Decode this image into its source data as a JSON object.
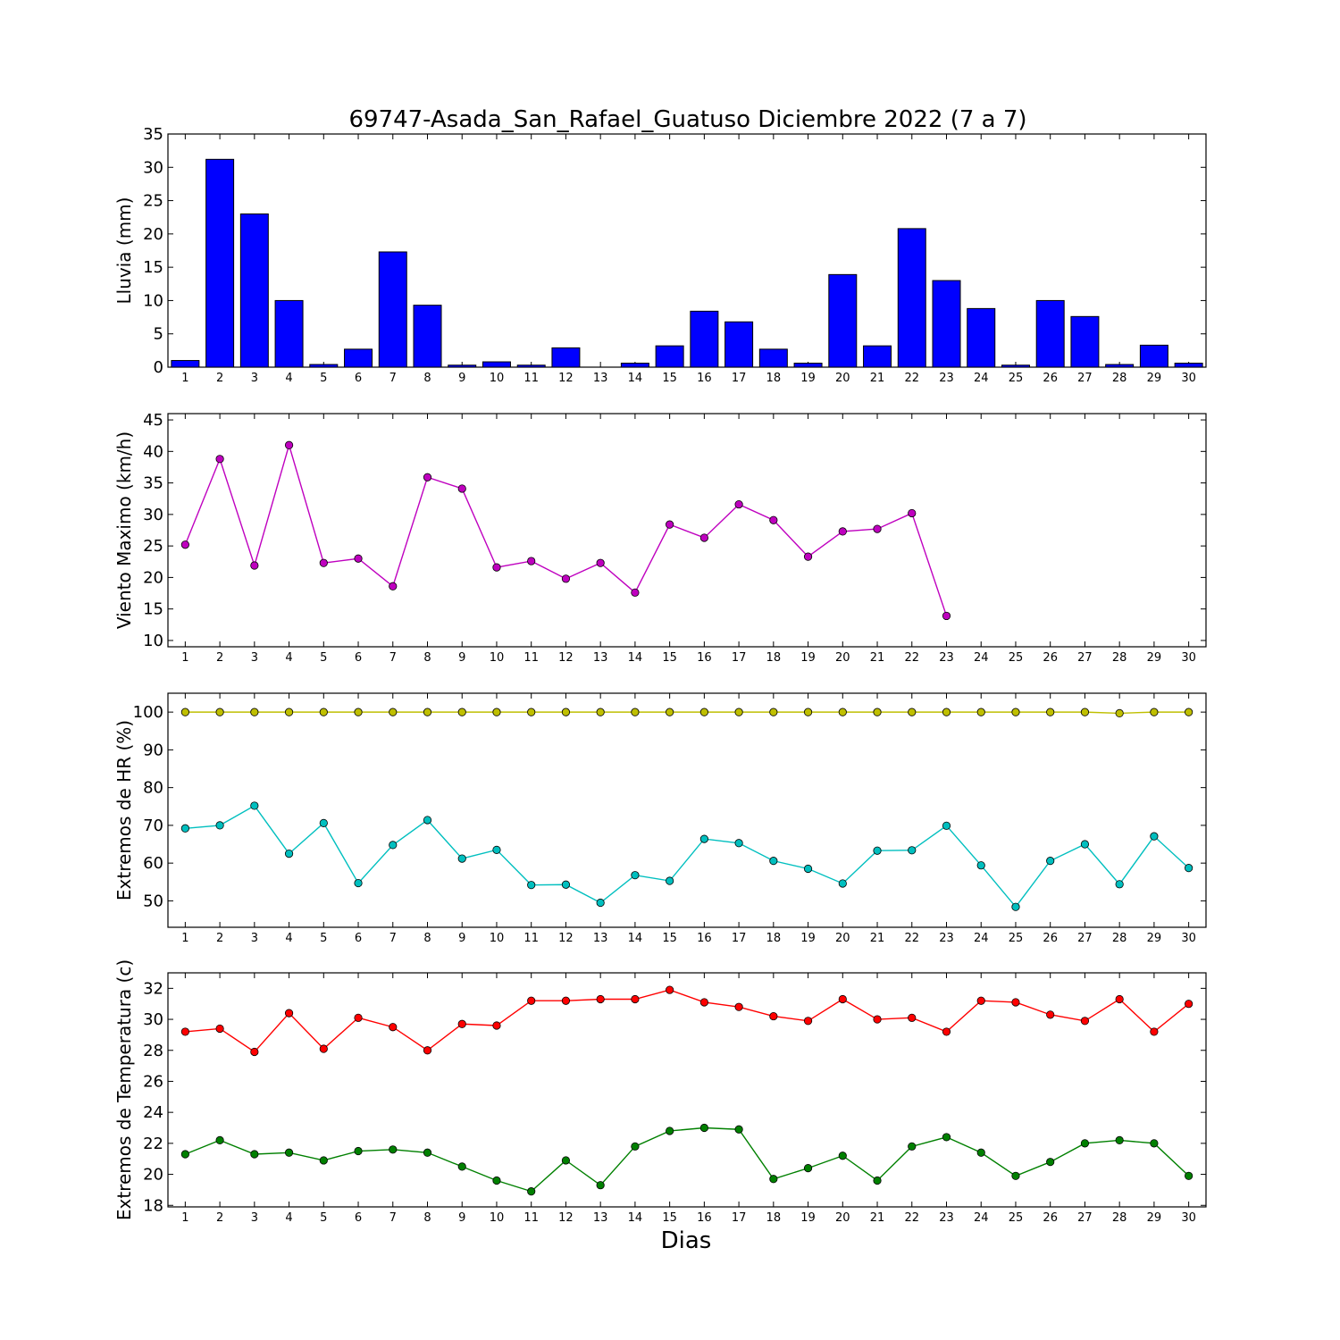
{
  "figure": {
    "title": "69747-Asada_San_Rafael_Guatuso Diciembre 2022  (7 a 7)",
    "xlabel": "Dias"
  },
  "chart_data": [
    {
      "type": "bar",
      "ylabel": "Lluvia (mm)",
      "categories": [
        "1",
        "2",
        "3",
        "4",
        "5",
        "6",
        "7",
        "8",
        "9",
        "10",
        "11",
        "12",
        "13",
        "14",
        "15",
        "16",
        "17",
        "18",
        "19",
        "20",
        "21",
        "22",
        "23",
        "24",
        "25",
        "26",
        "27",
        "28",
        "29",
        "30"
      ],
      "ylim": [
        0,
        35
      ],
      "yticks": [
        0,
        5,
        10,
        15,
        20,
        25,
        30,
        35
      ],
      "series": [
        {
          "color": "#0000ff",
          "values": [
            1.0,
            31.2,
            23.0,
            10.0,
            0.4,
            2.7,
            17.3,
            9.3,
            0.3,
            0.8,
            0.3,
            2.9,
            0.0,
            0.6,
            3.2,
            8.4,
            6.8,
            2.7,
            0.6,
            13.9,
            3.2,
            20.8,
            13.0,
            8.8,
            0.3,
            10.0,
            7.6,
            0.4,
            3.3,
            0.6
          ]
        }
      ]
    },
    {
      "type": "line",
      "ylabel": "Viento Maximo (km/h)",
      "categories": [
        "1",
        "2",
        "3",
        "4",
        "5",
        "6",
        "7",
        "8",
        "9",
        "10",
        "11",
        "12",
        "13",
        "14",
        "15",
        "16",
        "17",
        "18",
        "19",
        "20",
        "21",
        "22",
        "23",
        "24",
        "25",
        "26",
        "27",
        "28",
        "29",
        "30"
      ],
      "ylim": [
        9,
        46
      ],
      "yticks": [
        10,
        15,
        20,
        25,
        30,
        35,
        40,
        45
      ],
      "series": [
        {
          "color": "#bf00bf",
          "values": [
            25.2,
            38.8,
            21.9,
            41.0,
            22.3,
            23.0,
            18.6,
            35.9,
            34.1,
            21.6,
            22.6,
            19.8,
            22.3,
            17.6,
            28.4,
            26.3,
            31.6,
            29.1,
            23.3,
            27.3,
            27.7,
            30.2,
            13.9,
            null,
            null,
            null,
            null,
            null,
            null,
            null
          ]
        }
      ]
    },
    {
      "type": "line",
      "ylabel": "Extremos de HR (%)",
      "categories": [
        "1",
        "2",
        "3",
        "4",
        "5",
        "6",
        "7",
        "8",
        "9",
        "10",
        "11",
        "12",
        "13",
        "14",
        "15",
        "16",
        "17",
        "18",
        "19",
        "20",
        "21",
        "22",
        "23",
        "24",
        "25",
        "26",
        "27",
        "28",
        "29",
        "30"
      ],
      "ylim": [
        43,
        105
      ],
      "yticks": [
        50,
        60,
        70,
        80,
        90,
        100
      ],
      "series": [
        {
          "color": "#bfbf00",
          "values": [
            100,
            100,
            100,
            100,
            100,
            100,
            100,
            100,
            100,
            100,
            100,
            100,
            100,
            100,
            100,
            100,
            100,
            100,
            100,
            100,
            100,
            100,
            100,
            100,
            100,
            100,
            100,
            99.7,
            100,
            100
          ]
        },
        {
          "color": "#00bfbf",
          "values": [
            69.2,
            70.0,
            75.2,
            62.5,
            70.6,
            54.7,
            64.8,
            71.4,
            61.2,
            63.5,
            54.2,
            54.3,
            49.5,
            56.8,
            55.3,
            66.4,
            65.3,
            60.6,
            58.5,
            54.6,
            63.3,
            63.4,
            69.9,
            59.4,
            48.4,
            60.6,
            65.0,
            54.4,
            67.1,
            58.7
          ]
        }
      ]
    },
    {
      "type": "line",
      "ylabel": "Extremos de Temperatura (c)",
      "categories": [
        "1",
        "2",
        "3",
        "4",
        "5",
        "6",
        "7",
        "8",
        "9",
        "10",
        "11",
        "12",
        "13",
        "14",
        "15",
        "16",
        "17",
        "18",
        "19",
        "20",
        "21",
        "22",
        "23",
        "24",
        "25",
        "26",
        "27",
        "28",
        "29",
        "30"
      ],
      "ylim": [
        17.9,
        33.0
      ],
      "yticks": [
        18,
        20,
        22,
        24,
        26,
        28,
        30,
        32
      ],
      "series": [
        {
          "color": "#ff0000",
          "values": [
            29.2,
            29.4,
            27.9,
            30.4,
            28.1,
            30.1,
            29.5,
            28.0,
            29.7,
            29.6,
            31.2,
            31.2,
            31.3,
            31.3,
            31.9,
            31.1,
            30.8,
            30.2,
            29.9,
            31.3,
            30.0,
            30.1,
            29.2,
            31.2,
            31.1,
            30.3,
            29.9,
            31.3,
            29.2,
            31.0
          ]
        },
        {
          "color": "#008000",
          "values": [
            21.3,
            22.2,
            21.3,
            21.4,
            20.9,
            21.5,
            21.6,
            21.4,
            20.5,
            19.6,
            18.9,
            20.9,
            19.3,
            21.8,
            22.8,
            23.0,
            22.9,
            19.7,
            20.4,
            21.2,
            19.6,
            21.8,
            22.4,
            21.4,
            19.9,
            20.8,
            22.0,
            22.2,
            22.0,
            19.9
          ]
        }
      ]
    }
  ]
}
